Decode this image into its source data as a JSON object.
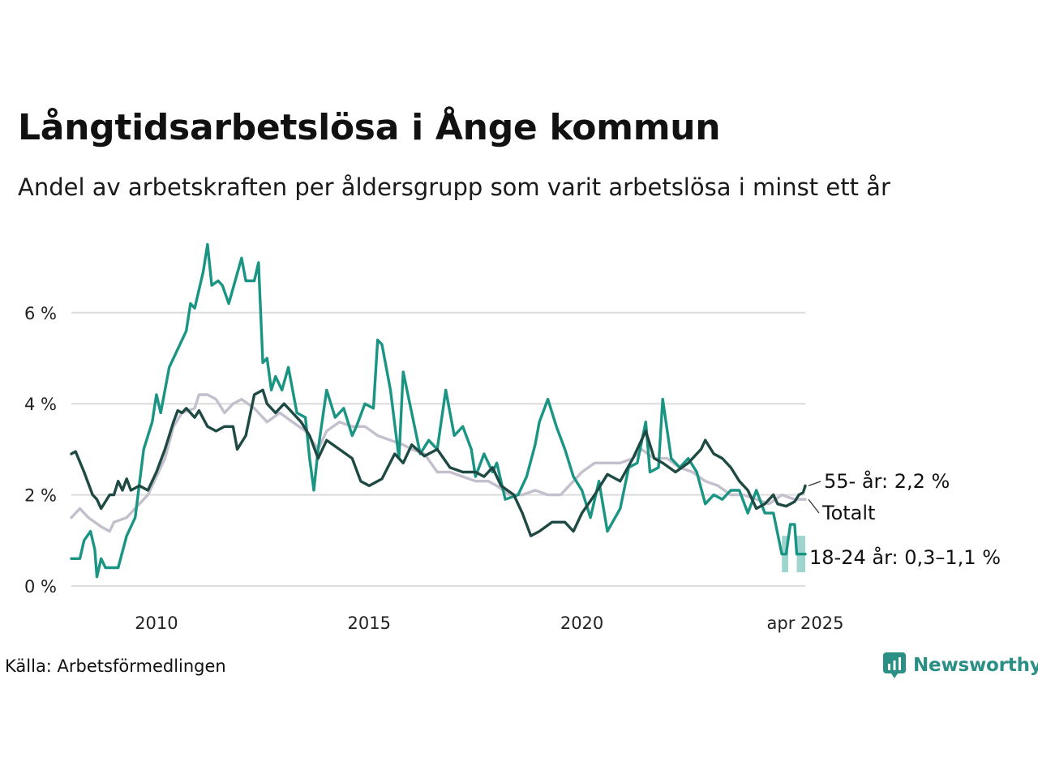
{
  "title": "Långtidsarbetslösa i Ånge kommun",
  "subtitle": "Andel av arbetskraften per åldersgrupp som varit arbetslösa i minst ett år",
  "source": "Källa: Arbetsförmedlingen",
  "brand": "Newsworthy",
  "colors": {
    "totalt": "#c3bfcc",
    "age55": "#1f4a44",
    "age18_24": "#1a9483",
    "band": "#8fcdc5",
    "grid": "#dcdcdc",
    "brand": "#2a8f84"
  },
  "chart_data": {
    "type": "line",
    "title": "Långtidsarbetslösa i Ånge kommun",
    "subtitle": "Andel av arbetskraften per åldersgrupp som varit arbetslösa i minst ett år",
    "x_unit": "year",
    "xlim": [
      2008.0,
      2025.25
    ],
    "ylim": [
      0,
      7.6
    ],
    "y_ticks": [
      0,
      2,
      4,
      6
    ],
    "y_tick_labels": [
      "0 %",
      "2 %",
      "4 %",
      "6 %"
    ],
    "x_ticks": [
      2010,
      2015,
      2020,
      2025.25
    ],
    "x_tick_labels": [
      "2010",
      "2015",
      "2020",
      "apr 2025"
    ],
    "grid": true,
    "legend": "direct labels at line ends (right)",
    "series": [
      {
        "name": "Totalt",
        "label": "Totalt",
        "color_key": "totalt",
        "points": [
          [
            2008.0,
            1.5
          ],
          [
            2008.2,
            1.7
          ],
          [
            2008.4,
            1.5
          ],
          [
            2008.7,
            1.3
          ],
          [
            2008.9,
            1.2
          ],
          [
            2009.0,
            1.4
          ],
          [
            2009.3,
            1.5
          ],
          [
            2009.6,
            1.8
          ],
          [
            2009.8,
            2.0
          ],
          [
            2010.0,
            2.4
          ],
          [
            2010.2,
            2.8
          ],
          [
            2010.4,
            3.5
          ],
          [
            2010.6,
            3.8
          ],
          [
            2010.9,
            3.9
          ],
          [
            2011.0,
            4.2
          ],
          [
            2011.2,
            4.2
          ],
          [
            2011.4,
            4.1
          ],
          [
            2011.6,
            3.8
          ],
          [
            2011.8,
            4.0
          ],
          [
            2012.0,
            4.1
          ],
          [
            2012.3,
            3.9
          ],
          [
            2012.6,
            3.6
          ],
          [
            2012.9,
            3.8
          ],
          [
            2013.2,
            3.6
          ],
          [
            2013.5,
            3.4
          ],
          [
            2013.8,
            3.0
          ],
          [
            2014.0,
            3.4
          ],
          [
            2014.3,
            3.6
          ],
          [
            2014.6,
            3.5
          ],
          [
            2014.9,
            3.5
          ],
          [
            2015.2,
            3.3
          ],
          [
            2015.5,
            3.2
          ],
          [
            2015.8,
            3.1
          ],
          [
            2016.0,
            3.0
          ],
          [
            2016.3,
            2.9
          ],
          [
            2016.6,
            2.5
          ],
          [
            2016.9,
            2.5
          ],
          [
            2017.2,
            2.4
          ],
          [
            2017.5,
            2.3
          ],
          [
            2017.8,
            2.3
          ],
          [
            2018.0,
            2.2
          ],
          [
            2018.3,
            2.0
          ],
          [
            2018.6,
            2.0
          ],
          [
            2018.9,
            2.1
          ],
          [
            2019.2,
            2.0
          ],
          [
            2019.5,
            2.0
          ],
          [
            2019.8,
            2.3
          ],
          [
            2020.0,
            2.5
          ],
          [
            2020.3,
            2.7
          ],
          [
            2020.6,
            2.7
          ],
          [
            2020.9,
            2.7
          ],
          [
            2021.2,
            2.8
          ],
          [
            2021.4,
            3.0
          ],
          [
            2021.7,
            2.8
          ],
          [
            2022.0,
            2.8
          ],
          [
            2022.3,
            2.6
          ],
          [
            2022.6,
            2.5
          ],
          [
            2022.9,
            2.3
          ],
          [
            2023.2,
            2.2
          ],
          [
            2023.5,
            2.0
          ],
          [
            2023.8,
            2.0
          ],
          [
            2024.1,
            1.9
          ],
          [
            2024.4,
            1.8
          ],
          [
            2024.7,
            2.0
          ],
          [
            2025.0,
            1.9
          ],
          [
            2025.25,
            1.9
          ]
        ]
      },
      {
        "name": "55- år",
        "label": "55- år: 2,2 %",
        "color_key": "age55",
        "points": [
          [
            2008.0,
            2.9
          ],
          [
            2008.1,
            2.95
          ],
          [
            2008.3,
            2.5
          ],
          [
            2008.5,
            2.0
          ],
          [
            2008.6,
            1.9
          ],
          [
            2008.7,
            1.7
          ],
          [
            2008.9,
            2.0
          ],
          [
            2009.0,
            2.0
          ],
          [
            2009.1,
            2.3
          ],
          [
            2009.2,
            2.1
          ],
          [
            2009.3,
            2.35
          ],
          [
            2009.4,
            2.1
          ],
          [
            2009.6,
            2.2
          ],
          [
            2009.8,
            2.1
          ],
          [
            2010.0,
            2.5
          ],
          [
            2010.2,
            3.0
          ],
          [
            2010.4,
            3.6
          ],
          [
            2010.5,
            3.85
          ],
          [
            2010.6,
            3.8
          ],
          [
            2010.7,
            3.9
          ],
          [
            2010.9,
            3.7
          ],
          [
            2011.0,
            3.85
          ],
          [
            2011.2,
            3.5
          ],
          [
            2011.4,
            3.4
          ],
          [
            2011.6,
            3.5
          ],
          [
            2011.8,
            3.5
          ],
          [
            2011.9,
            3.0
          ],
          [
            2012.1,
            3.3
          ],
          [
            2012.3,
            4.2
          ],
          [
            2012.5,
            4.3
          ],
          [
            2012.6,
            4.0
          ],
          [
            2012.8,
            3.8
          ],
          [
            2013.0,
            4.0
          ],
          [
            2013.2,
            3.8
          ],
          [
            2013.4,
            3.6
          ],
          [
            2013.6,
            3.3
          ],
          [
            2013.8,
            2.8
          ],
          [
            2014.0,
            3.2
          ],
          [
            2014.3,
            3.0
          ],
          [
            2014.6,
            2.8
          ],
          [
            2014.8,
            2.3
          ],
          [
            2015.0,
            2.2
          ],
          [
            2015.3,
            2.35
          ],
          [
            2015.6,
            2.9
          ],
          [
            2015.8,
            2.7
          ],
          [
            2016.0,
            3.1
          ],
          [
            2016.3,
            2.85
          ],
          [
            2016.6,
            3.0
          ],
          [
            2016.9,
            2.6
          ],
          [
            2017.2,
            2.5
          ],
          [
            2017.5,
            2.5
          ],
          [
            2017.7,
            2.4
          ],
          [
            2017.9,
            2.6
          ],
          [
            2018.1,
            2.2
          ],
          [
            2018.4,
            2.0
          ],
          [
            2018.6,
            1.6
          ],
          [
            2018.8,
            1.1
          ],
          [
            2019.0,
            1.2
          ],
          [
            2019.3,
            1.4
          ],
          [
            2019.6,
            1.4
          ],
          [
            2019.8,
            1.2
          ],
          [
            2020.0,
            1.6
          ],
          [
            2020.3,
            2.0
          ],
          [
            2020.6,
            2.45
          ],
          [
            2020.9,
            2.3
          ],
          [
            2021.2,
            2.8
          ],
          [
            2021.5,
            3.4
          ],
          [
            2021.7,
            2.8
          ],
          [
            2021.9,
            2.7
          ],
          [
            2022.2,
            2.5
          ],
          [
            2022.5,
            2.7
          ],
          [
            2022.8,
            3.0
          ],
          [
            2022.9,
            3.2
          ],
          [
            2023.1,
            2.9
          ],
          [
            2023.3,
            2.8
          ],
          [
            2023.5,
            2.6
          ],
          [
            2023.7,
            2.3
          ],
          [
            2023.9,
            2.1
          ],
          [
            2024.1,
            1.7
          ],
          [
            2024.3,
            1.8
          ],
          [
            2024.5,
            2.0
          ],
          [
            2024.6,
            1.8
          ],
          [
            2024.8,
            1.75
          ],
          [
            2025.0,
            1.85
          ],
          [
            2025.1,
            2.0
          ],
          [
            2025.2,
            2.05
          ],
          [
            2025.25,
            2.2
          ]
        ]
      },
      {
        "name": "18-24 år",
        "label": "18-24 år: 0,3–1,1 %",
        "color_key": "age18_24",
        "points": [
          [
            2008.0,
            0.6
          ],
          [
            2008.2,
            0.6
          ],
          [
            2008.3,
            1.0
          ],
          [
            2008.45,
            1.2
          ],
          [
            2008.55,
            0.8
          ],
          [
            2008.6,
            0.2
          ],
          [
            2008.7,
            0.6
          ],
          [
            2008.8,
            0.4
          ],
          [
            2009.1,
            0.4
          ],
          [
            2009.3,
            1.1
          ],
          [
            2009.5,
            1.5
          ],
          [
            2009.7,
            3.0
          ],
          [
            2009.9,
            3.6
          ],
          [
            2010.0,
            4.2
          ],
          [
            2010.1,
            3.8
          ],
          [
            2010.3,
            4.8
          ],
          [
            2010.5,
            5.2
          ],
          [
            2010.7,
            5.6
          ],
          [
            2010.8,
            6.2
          ],
          [
            2010.9,
            6.1
          ],
          [
            2011.1,
            6.9
          ],
          [
            2011.2,
            7.5
          ],
          [
            2011.3,
            6.6
          ],
          [
            2011.45,
            6.7
          ],
          [
            2011.55,
            6.6
          ],
          [
            2011.7,
            6.2
          ],
          [
            2011.85,
            6.7
          ],
          [
            2012.0,
            7.2
          ],
          [
            2012.1,
            6.7
          ],
          [
            2012.3,
            6.7
          ],
          [
            2012.4,
            7.1
          ],
          [
            2012.5,
            4.9
          ],
          [
            2012.6,
            5.0
          ],
          [
            2012.7,
            4.3
          ],
          [
            2012.8,
            4.6
          ],
          [
            2012.95,
            4.3
          ],
          [
            2013.1,
            4.8
          ],
          [
            2013.3,
            3.8
          ],
          [
            2013.5,
            3.7
          ],
          [
            2013.6,
            2.8
          ],
          [
            2013.7,
            2.1
          ],
          [
            2013.8,
            3.0
          ],
          [
            2014.0,
            4.3
          ],
          [
            2014.2,
            3.7
          ],
          [
            2014.4,
            3.9
          ],
          [
            2014.6,
            3.3
          ],
          [
            2014.7,
            3.5
          ],
          [
            2014.9,
            4.0
          ],
          [
            2015.1,
            3.9
          ],
          [
            2015.2,
            5.4
          ],
          [
            2015.3,
            5.3
          ],
          [
            2015.5,
            4.3
          ],
          [
            2015.7,
            2.8
          ],
          [
            2015.8,
            4.7
          ],
          [
            2016.0,
            3.8
          ],
          [
            2016.2,
            2.9
          ],
          [
            2016.4,
            3.2
          ],
          [
            2016.6,
            3.0
          ],
          [
            2016.8,
            4.3
          ],
          [
            2017.0,
            3.3
          ],
          [
            2017.2,
            3.5
          ],
          [
            2017.4,
            3.0
          ],
          [
            2017.5,
            2.4
          ],
          [
            2017.7,
            2.9
          ],
          [
            2017.9,
            2.5
          ],
          [
            2018.0,
            2.7
          ],
          [
            2018.2,
            1.9
          ],
          [
            2018.5,
            2.0
          ],
          [
            2018.7,
            2.4
          ],
          [
            2018.9,
            3.1
          ],
          [
            2019.0,
            3.6
          ],
          [
            2019.2,
            4.1
          ],
          [
            2019.4,
            3.5
          ],
          [
            2019.6,
            3.0
          ],
          [
            2019.8,
            2.4
          ],
          [
            2020.0,
            2.1
          ],
          [
            2020.2,
            1.5
          ],
          [
            2020.4,
            2.3
          ],
          [
            2020.6,
            1.2
          ],
          [
            2020.9,
            1.7
          ],
          [
            2021.1,
            2.6
          ],
          [
            2021.3,
            2.7
          ],
          [
            2021.5,
            3.6
          ],
          [
            2021.6,
            2.5
          ],
          [
            2021.8,
            2.6
          ],
          [
            2021.9,
            4.1
          ],
          [
            2022.1,
            2.8
          ],
          [
            2022.3,
            2.6
          ],
          [
            2022.5,
            2.8
          ],
          [
            2022.7,
            2.5
          ],
          [
            2022.9,
            1.8
          ],
          [
            2023.1,
            2.0
          ],
          [
            2023.3,
            1.9
          ],
          [
            2023.5,
            2.1
          ],
          [
            2023.7,
            2.1
          ],
          [
            2023.9,
            1.6
          ],
          [
            2024.1,
            2.1
          ],
          [
            2024.3,
            1.6
          ],
          [
            2024.5,
            1.6
          ],
          [
            2024.7,
            0.7
          ],
          [
            2024.8,
            0.7
          ],
          [
            2024.9,
            1.35
          ],
          [
            2025.0,
            1.35
          ],
          [
            2025.05,
            0.7
          ],
          [
            2025.25,
            0.7
          ]
        ]
      }
    ],
    "uncertainty_band": {
      "series": "18-24 år",
      "range_label": "0,3–1,1 %",
      "segments": [
        {
          "x0": 2024.7,
          "x1": 2024.85,
          "low": 0.3,
          "high": 1.1
        },
        {
          "x0": 2025.05,
          "x1": 2025.25,
          "low": 0.3,
          "high": 1.1
        }
      ]
    }
  }
}
